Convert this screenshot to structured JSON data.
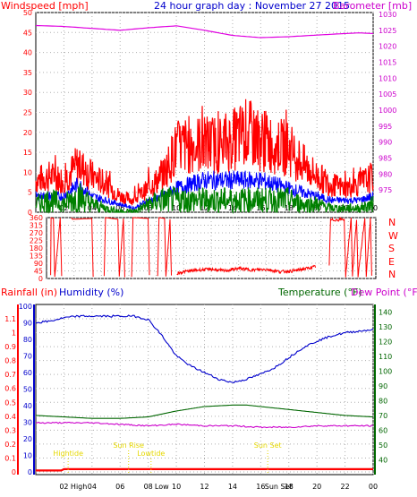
{
  "header": {
    "windspeed_label": "Windspeed [mph]",
    "title": "24 hour graph day : November 27 2015",
    "barometer_label": "Barometer [mb]"
  },
  "lower_header": {
    "rainfall_label": "Rainfall (in)",
    "humidity_label": "Humidity (%)",
    "temperature_label": "Temperature (°F)",
    "dewpoint_label": "Dew Point (°F)"
  },
  "colors": {
    "wind": "#ff0000",
    "wind_avg": "#0000ff",
    "wind_low": "#008000",
    "barometer": "#e000e0",
    "humidity": "#0000cc",
    "temperature": "#006600",
    "dewpoint": "#cc00cc",
    "rain": "#ff0000",
    "sun_annotations": "#e6d800",
    "grid": "#b0b0b0",
    "frame": "#000000"
  },
  "chart_data": [
    {
      "id": "wind",
      "type": "line",
      "x_ticks": [
        "02",
        "04",
        "06",
        "08",
        "10",
        "12",
        "14",
        "16",
        "18",
        "20",
        "22",
        "00"
      ],
      "x_start_hour": 0,
      "x_end_hour": 24,
      "y_left": {
        "label": "Windspeed [mph]",
        "range": [
          0,
          50
        ],
        "ticks": [
          0,
          5,
          10,
          15,
          20,
          25,
          30,
          35,
          40,
          45,
          50
        ]
      },
      "y_right": {
        "label": "Barometer [mb]",
        "range": [
          970,
          1030
        ],
        "ticks": [
          975,
          980,
          985,
          990,
          995,
          1000,
          1005,
          1010,
          1015,
          1020,
          1025,
          1030
        ]
      },
      "series": [
        {
          "key": "gust",
          "axis": "left",
          "hours": [
            0,
            1,
            2,
            3,
            4,
            5,
            6,
            7,
            8,
            9,
            10,
            11,
            12,
            13,
            14,
            15,
            16,
            17,
            18,
            19,
            20,
            21,
            22,
            23,
            24
          ],
          "values": [
            8,
            9,
            8,
            12,
            9,
            7,
            4,
            3,
            6,
            9,
            16,
            17,
            17,
            17,
            18,
            20,
            18,
            17,
            16,
            12,
            9,
            7,
            6,
            7,
            9
          ]
        },
        {
          "key": "average",
          "axis": "left",
          "hours": [
            0,
            1,
            2,
            3,
            4,
            5,
            6,
            7,
            8,
            9,
            10,
            11,
            12,
            13,
            14,
            15,
            16,
            17,
            18,
            19,
            20,
            21,
            22,
            23,
            24
          ],
          "values": [
            4,
            4,
            4,
            7,
            4,
            3,
            2,
            1,
            3,
            4,
            6,
            7,
            8,
            8,
            8,
            8,
            8,
            7,
            6,
            5,
            4,
            3,
            3,
            3,
            4
          ]
        },
        {
          "key": "low",
          "axis": "left",
          "hours": [
            0,
            1,
            2,
            3,
            4,
            5,
            6,
            7,
            8,
            9,
            10,
            11,
            12,
            13,
            14,
            15,
            16,
            17,
            18,
            19,
            20,
            21,
            22,
            23,
            24
          ],
          "values": [
            2,
            3,
            2,
            4,
            2,
            1,
            0,
            0,
            2,
            3,
            3,
            3,
            3,
            3,
            3,
            3,
            3,
            3,
            3,
            2,
            2,
            1,
            1,
            1,
            2
          ]
        },
        {
          "key": "barometer",
          "axis": "right",
          "hours": [
            0,
            2,
            4,
            6,
            8,
            10,
            12,
            14,
            16,
            18,
            20,
            22,
            23,
            24
          ],
          "values": [
            1026.5,
            1026.2,
            1025.6,
            1025.0,
            1025.8,
            1026.4,
            1025.0,
            1023.4,
            1022.7,
            1023.0,
            1023.5,
            1024.0,
            1024.2,
            1024.0
          ]
        }
      ]
    },
    {
      "id": "direction",
      "type": "line",
      "x_ticks": [
        "02",
        "04",
        "06",
        "08",
        "10",
        "12",
        "14",
        "16",
        "18",
        "20",
        "22",
        "00"
      ],
      "y_left": {
        "range": [
          0,
          360
        ],
        "ticks": [
          0,
          45,
          90,
          135,
          180,
          225,
          270,
          315,
          360
        ]
      },
      "y_right": {
        "labels": [
          "N",
          "W",
          "S",
          "E",
          "N"
        ]
      },
      "series": [
        {
          "key": "direction",
          "segments": [
            {
              "hours": [
                0.3,
                0.3,
                0.5,
                0.6,
                1.0,
                1.1
              ],
              "values": [
                20,
                360,
                355,
                10,
                360,
                15
              ]
            },
            {
              "hours": [
                1.8,
                1.9,
                3.3,
                3.4
              ],
              "values": [
                360,
                350,
                355,
                10
              ]
            },
            {
              "hours": [
                4.2,
                4.3,
                5.2,
                5.3,
                5.6,
                5.7
              ],
              "values": [
                15,
                360,
                350,
                12,
                355,
                8
              ]
            },
            {
              "hours": [
                6.2,
                6.3,
                7.4,
                7.5
              ],
              "values": [
                10,
                360,
                355,
                20
              ]
            },
            {
              "hours": [
                8.1,
                8.2,
                8.6,
                8.7,
                9.0,
                9.1
              ],
              "values": [
                15,
                360,
                355,
                12,
                350,
                18
              ]
            },
            {
              "hours": [
                9.5,
                10,
                11,
                12,
                13,
                14,
                15,
                16,
                17,
                18,
                19,
                19.6
              ],
              "values": [
                30,
                40,
                50,
                55,
                45,
                60,
                50,
                55,
                40,
                45,
                60,
                70
              ]
            },
            {
              "hours": [
                20.6,
                20.7,
                21.7,
                21.8,
                22.2,
                22.3,
                22.6,
                22.7,
                23.2,
                23.3,
                23.6,
                23.7
              ],
              "values": [
                80,
                345,
                350,
                15,
                360,
                20,
                355,
                10,
                360,
                15,
                350,
                20
              ]
            }
          ]
        }
      ]
    },
    {
      "id": "lower",
      "type": "line",
      "x_ticks": [
        "02",
        "04",
        "06",
        "08",
        "10",
        "12",
        "14",
        "16",
        "18",
        "20",
        "22",
        "00"
      ],
      "y_left_outer": {
        "label": "Rainfall (in)",
        "range": [
          0,
          1.1
        ],
        "ticks": [
          0,
          0.1,
          0.2,
          0.3,
          0.4,
          0.5,
          0.6,
          0.7,
          0.8,
          0.9,
          1,
          1.1
        ]
      },
      "y_left_inner": {
        "label": "Humidity (%)",
        "range": [
          0,
          100
        ],
        "ticks": [
          0,
          10,
          20,
          30,
          40,
          50,
          60,
          70,
          80,
          90,
          100
        ]
      },
      "y_right": {
        "label": "Temperature (°F)",
        "range": [
          30,
          145
        ],
        "ticks": [
          40,
          50,
          60,
          70,
          80,
          90,
          100,
          110,
          120,
          130,
          140
        ]
      },
      "series": [
        {
          "key": "humidity",
          "axis": "inner",
          "hours": [
            0,
            1,
            2,
            3,
            4,
            5,
            6,
            7,
            8,
            9,
            10,
            11,
            12,
            13,
            14,
            15,
            16,
            17,
            18,
            19,
            20,
            21,
            22,
            23,
            24
          ],
          "values": [
            90,
            91,
            93,
            94,
            94,
            94,
            94,
            94,
            92,
            82,
            70,
            64,
            60,
            56,
            54,
            56,
            59,
            63,
            69,
            75,
            79,
            82,
            84,
            85,
            86
          ]
        },
        {
          "key": "temperature",
          "axis": "right",
          "hours": [
            0,
            2,
            4,
            6,
            8,
            10,
            12,
            14,
            15,
            16,
            18,
            20,
            22,
            24
          ],
          "values": [
            70,
            69,
            68,
            68,
            69,
            73,
            76,
            77,
            77,
            76,
            74,
            72,
            70,
            69
          ]
        },
        {
          "key": "dewpoint",
          "axis": "right",
          "hours": [
            0,
            2,
            4,
            6,
            8,
            10,
            12,
            14,
            16,
            18,
            20,
            22,
            24
          ],
          "values": [
            65,
            65,
            65,
            64,
            63,
            64,
            63,
            63,
            62,
            62,
            63,
            63,
            63
          ]
        },
        {
          "key": "rainfall",
          "axis": "outer",
          "hours": [
            0,
            1.8,
            2.0,
            24
          ],
          "values": [
            0.01,
            0.01,
            0.02,
            0.02
          ]
        }
      ],
      "annotations": [
        {
          "text": "Hightide",
          "hour": 2.3,
          "row": "low"
        },
        {
          "text": "Sun Rise",
          "hour": 6.6,
          "row": "high"
        },
        {
          "text": "Lowtide",
          "hour": 8.2,
          "row": "low"
        },
        {
          "text": "Sun Set",
          "hour": 16.5,
          "row": "high"
        }
      ],
      "x_axis_annotations": [
        {
          "text": "High",
          "hour": 2.3
        },
        {
          "text": "Low",
          "hour": 8.2
        },
        {
          "text": "Sun Set",
          "hour": 16.5
        }
      ]
    }
  ]
}
